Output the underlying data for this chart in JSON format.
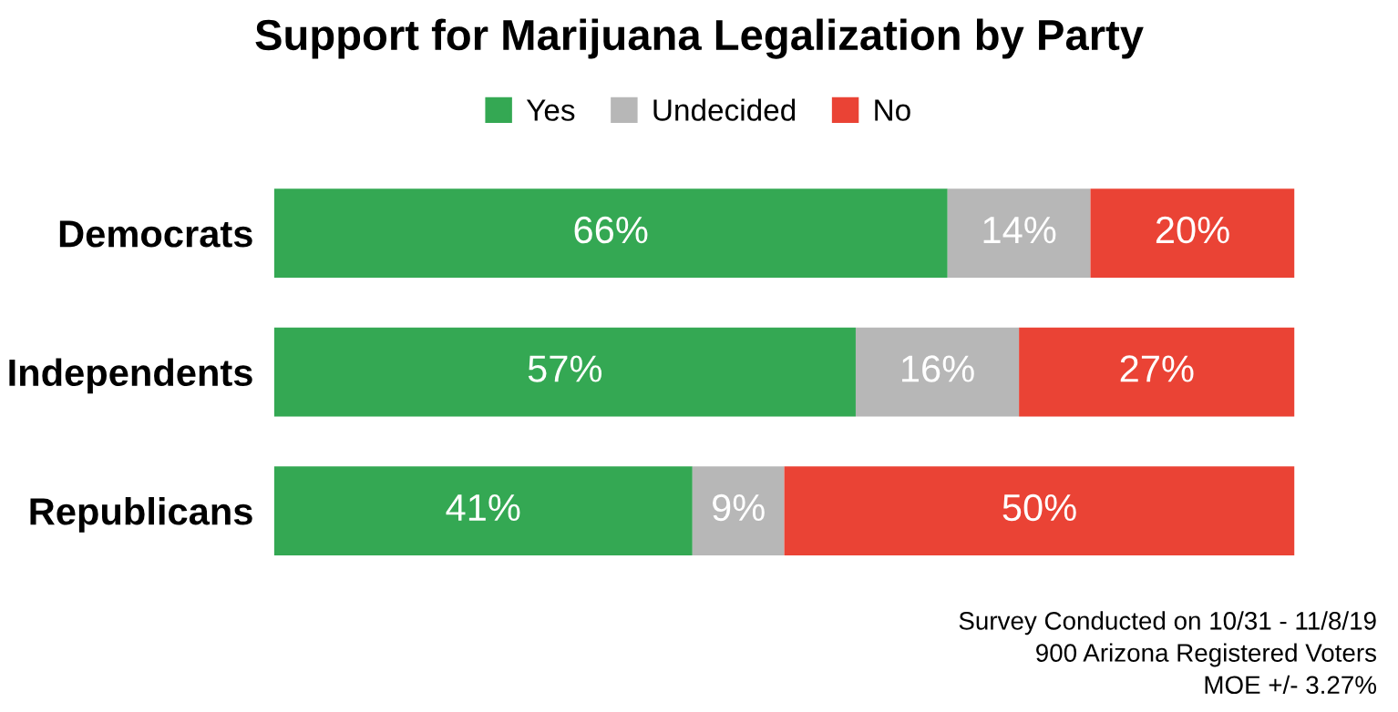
{
  "chart_data": {
    "type": "bar",
    "title": "Support for Marijuana Legalization by Party",
    "orientation": "horizontal",
    "stacked": true,
    "legend": "top",
    "categories": [
      "Democrats",
      "Independents",
      "Republicans"
    ],
    "series": [
      {
        "name": "Yes",
        "color": "#34a853",
        "values": [
          66,
          57,
          41
        ],
        "value_labels": [
          "66%",
          "57%",
          "41%"
        ]
      },
      {
        "name": "Undecided",
        "color": "#b7b7b7",
        "values": [
          14,
          16,
          9
        ],
        "value_labels": [
          "14%",
          "16%",
          "9%"
        ]
      },
      {
        "name": "No",
        "color": "#ea4335",
        "values": [
          20,
          27,
          50
        ],
        "value_labels": [
          "20%",
          "27%",
          "50%"
        ]
      }
    ],
    "annotations": [
      "Survey Conducted on 10/31 - 11/8/19",
      "900 Arizona Registered Voters",
      "MOE +/- 3.27%"
    ]
  }
}
